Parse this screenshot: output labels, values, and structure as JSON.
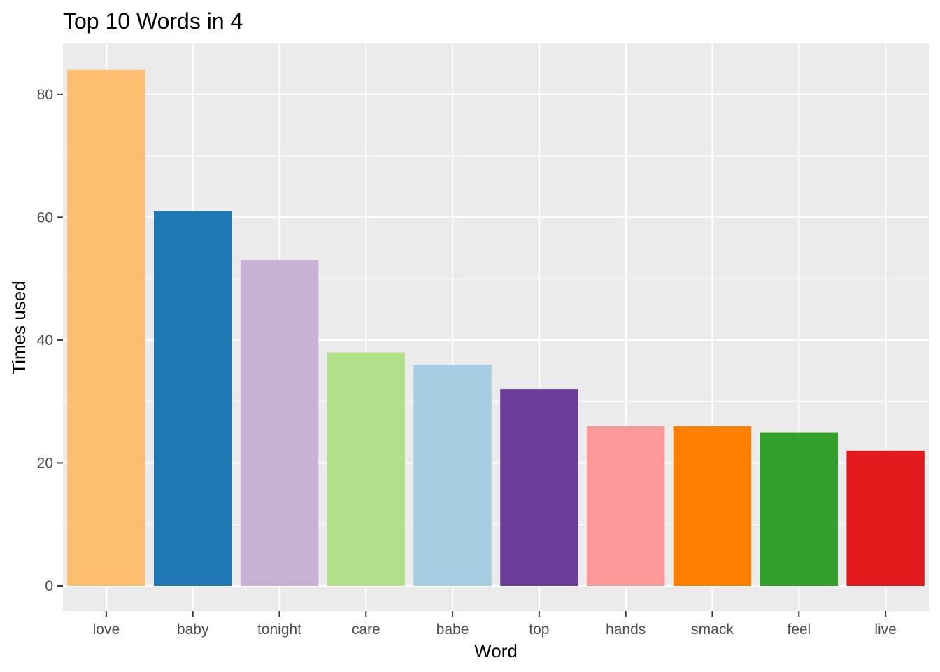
{
  "chart_data": {
    "type": "bar",
    "title": "Top 10 Words in 4",
    "xlabel": "Word",
    "ylabel": "Times used",
    "categories": [
      "love",
      "baby",
      "tonight",
      "care",
      "babe",
      "top",
      "hands",
      "smack",
      "feel",
      "live"
    ],
    "values": [
      84,
      61,
      53,
      38,
      36,
      32,
      26,
      26,
      25,
      22
    ],
    "colors": [
      "#FDBF6F",
      "#1F78B4",
      "#CAB2D6",
      "#B2DF8A",
      "#A6CEE3",
      "#6A3D9A",
      "#FB9A99",
      "#FF7F00",
      "#33A02C",
      "#E31A1C"
    ],
    "ylim": [
      0,
      88
    ],
    "yticks": [
      0,
      20,
      40,
      60,
      80
    ],
    "grid": true,
    "legend": "none",
    "panel_background": "#EBEBEB",
    "gridline_color": "#FFFFFF"
  }
}
